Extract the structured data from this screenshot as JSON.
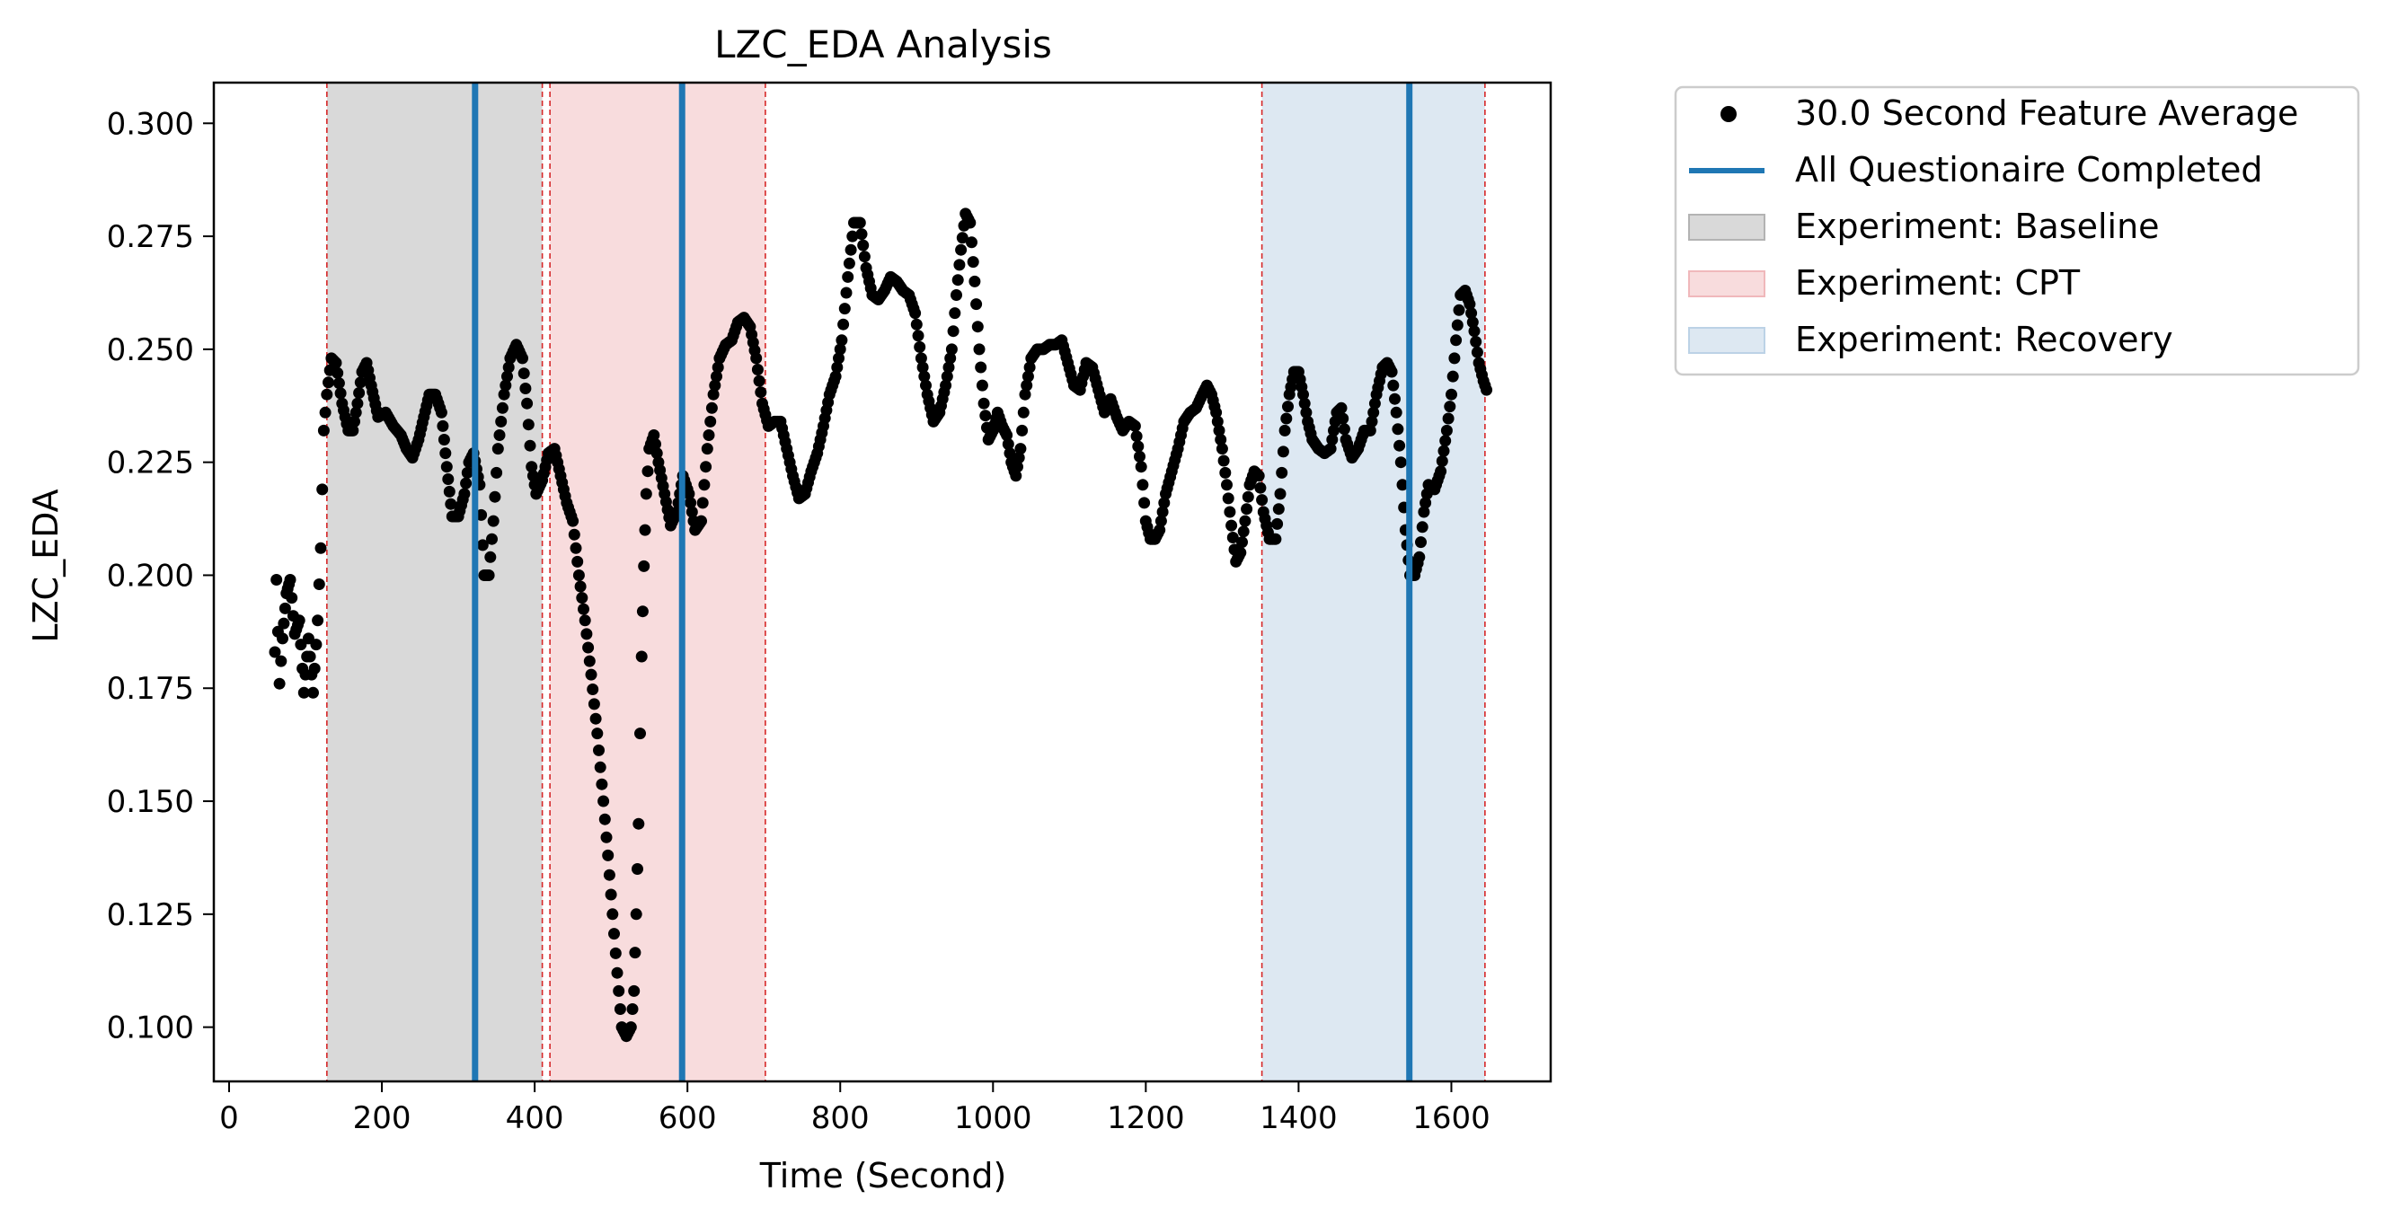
{
  "chart_data": {
    "type": "scatter",
    "title": "LZC_EDA Analysis",
    "xlabel": "Time (Second)",
    "ylabel": "LZC_EDA",
    "xlim": [
      -20,
      1730
    ],
    "ylim": [
      0.088,
      0.309
    ],
    "x_ticks": [
      0,
      200,
      400,
      600,
      800,
      1000,
      1200,
      1400,
      1600
    ],
    "y_ticks": [
      0.1,
      0.125,
      0.15,
      0.175,
      0.2,
      0.225,
      0.25,
      0.275,
      0.3
    ],
    "y_tick_labels": [
      "0.100",
      "0.125",
      "0.150",
      "0.175",
      "0.200",
      "0.225",
      "0.250",
      "0.275",
      "0.300"
    ],
    "grid": false,
    "legend_position": "outside-upper-right",
    "legend": [
      {
        "label": "30.0 Second Feature Average",
        "kind": "marker",
        "color": "#000000"
      },
      {
        "label": "All Questionaire Completed",
        "kind": "line",
        "color": "#1f77b4"
      },
      {
        "label": "Experiment: Baseline",
        "kind": "patch",
        "color": "#d9d9d9",
        "edge": "#b3b3b3"
      },
      {
        "label": "Experiment: CPT",
        "kind": "patch",
        "color": "#f8dcdd",
        "edge": "#f0b8bb"
      },
      {
        "label": "Experiment: Recovery",
        "kind": "patch",
        "color": "#dde8f2",
        "edge": "#bcd2e6"
      }
    ],
    "phases": [
      {
        "name": "Baseline",
        "start": 128,
        "end": 410,
        "color": "#d9d9d9"
      },
      {
        "name": "CPT",
        "start": 420,
        "end": 702,
        "color": "#f8dcdd"
      },
      {
        "name": "Recovery",
        "start": 1352,
        "end": 1644,
        "color": "#dde8f2"
      }
    ],
    "phase_boundaries": [
      128,
      410,
      420,
      702,
      1352,
      1644
    ],
    "boundary_color": "#d62728",
    "questionnaire_completed": [
      322,
      593,
      1545
    ],
    "questionnaire_color": "#1f77b4",
    "series": [
      {
        "name": "30.0 Second Feature Average",
        "marker": "circle",
        "color": "#000000",
        "keypoints": [
          [
            60,
            0.183
          ],
          [
            62,
            0.199
          ],
          [
            66,
            0.176
          ],
          [
            70,
            0.186
          ],
          [
            75,
            0.196
          ],
          [
            80,
            0.199
          ],
          [
            86,
            0.187
          ],
          [
            92,
            0.19
          ],
          [
            98,
            0.174
          ],
          [
            104,
            0.186
          ],
          [
            110,
            0.174
          ],
          [
            116,
            0.19
          ],
          [
            120,
            0.206
          ],
          [
            124,
            0.232
          ],
          [
            128,
            0.24
          ],
          [
            134,
            0.248
          ],
          [
            140,
            0.247
          ],
          [
            148,
            0.238
          ],
          [
            156,
            0.232
          ],
          [
            162,
            0.232
          ],
          [
            168,
            0.238
          ],
          [
            174,
            0.245
          ],
          [
            180,
            0.247
          ],
          [
            186,
            0.242
          ],
          [
            195,
            0.235
          ],
          [
            205,
            0.236
          ],
          [
            215,
            0.233
          ],
          [
            225,
            0.231
          ],
          [
            232,
            0.228
          ],
          [
            240,
            0.226
          ],
          [
            248,
            0.23
          ],
          [
            255,
            0.235
          ],
          [
            262,
            0.24
          ],
          [
            270,
            0.24
          ],
          [
            278,
            0.236
          ],
          [
            285,
            0.224
          ],
          [
            292,
            0.213
          ],
          [
            300,
            0.213
          ],
          [
            308,
            0.218
          ],
          [
            314,
            0.225
          ],
          [
            320,
            0.227
          ],
          [
            328,
            0.22
          ],
          [
            334,
            0.2
          ],
          [
            340,
            0.2
          ],
          [
            346,
            0.212
          ],
          [
            352,
            0.228
          ],
          [
            360,
            0.24
          ],
          [
            368,
            0.248
          ],
          [
            376,
            0.251
          ],
          [
            384,
            0.248
          ],
          [
            390,
            0.238
          ],
          [
            396,
            0.224
          ],
          [
            402,
            0.218
          ],
          [
            410,
            0.221
          ],
          [
            418,
            0.227
          ],
          [
            426,
            0.228
          ],
          [
            434,
            0.222
          ],
          [
            442,
            0.216
          ],
          [
            450,
            0.212
          ],
          [
            458,
            0.2
          ],
          [
            466,
            0.19
          ],
          [
            474,
            0.178
          ],
          [
            482,
            0.165
          ],
          [
            490,
            0.15
          ],
          [
            496,
            0.138
          ],
          [
            502,
            0.125
          ],
          [
            508,
            0.112
          ],
          [
            514,
            0.1
          ],
          [
            520,
            0.098
          ],
          [
            526,
            0.1
          ],
          [
            530,
            0.108
          ],
          [
            533,
            0.125
          ],
          [
            536,
            0.145
          ],
          [
            538,
            0.165
          ],
          [
            540,
            0.182
          ],
          [
            543,
            0.202
          ],
          [
            546,
            0.218
          ],
          [
            550,
            0.228
          ],
          [
            556,
            0.231
          ],
          [
            562,
            0.225
          ],
          [
            570,
            0.218
          ],
          [
            578,
            0.211
          ],
          [
            586,
            0.214
          ],
          [
            594,
            0.222
          ],
          [
            602,
            0.218
          ],
          [
            610,
            0.21
          ],
          [
            618,
            0.212
          ],
          [
            626,
            0.228
          ],
          [
            634,
            0.24
          ],
          [
            642,
            0.248
          ],
          [
            650,
            0.251
          ],
          [
            658,
            0.252
          ],
          [
            666,
            0.256
          ],
          [
            674,
            0.257
          ],
          [
            682,
            0.255
          ],
          [
            690,
            0.248
          ],
          [
            698,
            0.238
          ],
          [
            706,
            0.233
          ],
          [
            714,
            0.234
          ],
          [
            722,
            0.234
          ],
          [
            730,
            0.228
          ],
          [
            738,
            0.222
          ],
          [
            746,
            0.217
          ],
          [
            754,
            0.218
          ],
          [
            762,
            0.223
          ],
          [
            770,
            0.227
          ],
          [
            778,
            0.233
          ],
          [
            786,
            0.24
          ],
          [
            794,
            0.244
          ],
          [
            802,
            0.252
          ],
          [
            810,
            0.266
          ],
          [
            818,
            0.278
          ],
          [
            826,
            0.278
          ],
          [
            834,
            0.268
          ],
          [
            842,
            0.262
          ],
          [
            850,
            0.261
          ],
          [
            858,
            0.263
          ],
          [
            866,
            0.266
          ],
          [
            874,
            0.265
          ],
          [
            882,
            0.263
          ],
          [
            890,
            0.262
          ],
          [
            898,
            0.258
          ],
          [
            906,
            0.248
          ],
          [
            914,
            0.24
          ],
          [
            922,
            0.234
          ],
          [
            930,
            0.236
          ],
          [
            938,
            0.242
          ],
          [
            946,
            0.25
          ],
          [
            952,
            0.262
          ],
          [
            958,
            0.272
          ],
          [
            964,
            0.28
          ],
          [
            970,
            0.278
          ],
          [
            976,
            0.265
          ],
          [
            982,
            0.25
          ],
          [
            988,
            0.238
          ],
          [
            994,
            0.23
          ],
          [
            1000,
            0.232
          ],
          [
            1006,
            0.236
          ],
          [
            1012,
            0.233
          ],
          [
            1018,
            0.231
          ],
          [
            1024,
            0.225
          ],
          [
            1030,
            0.222
          ],
          [
            1036,
            0.228
          ],
          [
            1042,
            0.24
          ],
          [
            1050,
            0.248
          ],
          [
            1058,
            0.25
          ],
          [
            1066,
            0.25
          ],
          [
            1074,
            0.251
          ],
          [
            1082,
            0.251
          ],
          [
            1090,
            0.252
          ],
          [
            1098,
            0.247
          ],
          [
            1106,
            0.242
          ],
          [
            1114,
            0.241
          ],
          [
            1122,
            0.247
          ],
          [
            1130,
            0.246
          ],
          [
            1138,
            0.241
          ],
          [
            1146,
            0.236
          ],
          [
            1154,
            0.239
          ],
          [
            1162,
            0.235
          ],
          [
            1170,
            0.232
          ],
          [
            1178,
            0.234
          ],
          [
            1186,
            0.233
          ],
          [
            1194,
            0.224
          ],
          [
            1200,
            0.212
          ],
          [
            1206,
            0.208
          ],
          [
            1212,
            0.208
          ],
          [
            1218,
            0.21
          ],
          [
            1226,
            0.218
          ],
          [
            1234,
            0.223
          ],
          [
            1242,
            0.228
          ],
          [
            1250,
            0.234
          ],
          [
            1258,
            0.236
          ],
          [
            1266,
            0.237
          ],
          [
            1274,
            0.24
          ],
          [
            1280,
            0.242
          ],
          [
            1286,
            0.24
          ],
          [
            1292,
            0.236
          ],
          [
            1300,
            0.228
          ],
          [
            1306,
            0.22
          ],
          [
            1312,
            0.211
          ],
          [
            1318,
            0.203
          ],
          [
            1324,
            0.205
          ],
          [
            1330,
            0.212
          ],
          [
            1336,
            0.22
          ],
          [
            1342,
            0.223
          ],
          [
            1348,
            0.222
          ],
          [
            1354,
            0.214
          ],
          [
            1362,
            0.208
          ],
          [
            1370,
            0.208
          ],
          [
            1376,
            0.218
          ],
          [
            1382,
            0.232
          ],
          [
            1388,
            0.24
          ],
          [
            1394,
            0.245
          ],
          [
            1400,
            0.245
          ],
          [
            1406,
            0.24
          ],
          [
            1412,
            0.234
          ],
          [
            1418,
            0.23
          ],
          [
            1426,
            0.228
          ],
          [
            1434,
            0.227
          ],
          [
            1442,
            0.228
          ],
          [
            1450,
            0.236
          ],
          [
            1456,
            0.237
          ],
          [
            1462,
            0.23
          ],
          [
            1470,
            0.226
          ],
          [
            1478,
            0.228
          ],
          [
            1486,
            0.232
          ],
          [
            1494,
            0.232
          ],
          [
            1502,
            0.24
          ],
          [
            1510,
            0.246
          ],
          [
            1516,
            0.247
          ],
          [
            1522,
            0.245
          ],
          [
            1528,
            0.236
          ],
          [
            1534,
            0.225
          ],
          [
            1540,
            0.21
          ],
          [
            1546,
            0.2
          ],
          [
            1552,
            0.2
          ],
          [
            1558,
            0.204
          ],
          [
            1564,
            0.214
          ],
          [
            1570,
            0.22
          ],
          [
            1578,
            0.219
          ],
          [
            1586,
            0.223
          ],
          [
            1594,
            0.232
          ],
          [
            1600,
            0.24
          ],
          [
            1606,
            0.252
          ],
          [
            1612,
            0.262
          ],
          [
            1618,
            0.263
          ],
          [
            1624,
            0.26
          ],
          [
            1630,
            0.254
          ],
          [
            1636,
            0.247
          ],
          [
            1642,
            0.243
          ],
          [
            1646,
            0.241
          ]
        ]
      }
    ]
  }
}
